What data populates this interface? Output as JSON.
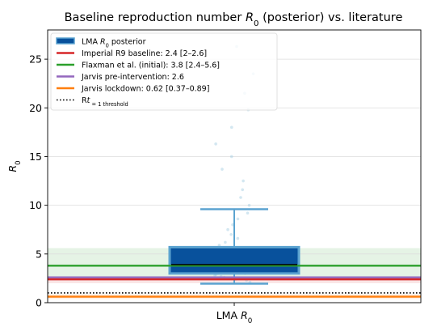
{
  "chart_data": {
    "type": "box",
    "title": "Baseline reproduction number R0 (posterior) vs. literature",
    "title_parts": [
      "Baseline reproduction number ",
      "R",
      "0",
      " (posterior) vs. literature"
    ],
    "ylabel_parts": [
      "R",
      "0"
    ],
    "ylim": [
      0,
      28
    ],
    "yticks": [
      0,
      5,
      10,
      15,
      20,
      25
    ],
    "grid": "y",
    "category_parts": [
      "LMA ",
      "R",
      "0"
    ],
    "box": {
      "q1": 3.0,
      "median": 3.9,
      "q3": 5.7,
      "whisker_low": 1.95,
      "whisker_high": 9.6,
      "fill": "#08519c",
      "edge": "#5ba3d0"
    },
    "posterior_samples": [
      2.1,
      2.3,
      2.4,
      2.5,
      2.6,
      2.7,
      2.8,
      2.9,
      3.0,
      3.0,
      3.1,
      3.2,
      3.2,
      3.3,
      3.4,
      3.5,
      3.5,
      3.6,
      3.7,
      3.8,
      3.9,
      4.0,
      4.1,
      4.2,
      4.3,
      4.4,
      4.5,
      4.6,
      4.8,
      5.0,
      5.2,
      5.4,
      5.6,
      5.9,
      6.2,
      6.6,
      7.0,
      7.5,
      8.0,
      8.6,
      9.2,
      10.0,
      10.8,
      11.6,
      12.5,
      13.7,
      15.0,
      16.3,
      18.0,
      19.8,
      21.5,
      23.5,
      26.3
    ],
    "reference_lines": [
      {
        "label_parts": [
          "Imperial R9 baseline: 2.4 [2–2.6]"
        ],
        "value": 2.4,
        "band": [
          2.0,
          2.6
        ],
        "color": "#d62728",
        "style": "solid"
      },
      {
        "label_parts": [
          "Flaxman et al. (initial): 3.8 [2.4–5.6]"
        ],
        "value": 3.8,
        "band": [
          2.4,
          5.6
        ],
        "color": "#2ca02c",
        "style": "solid"
      },
      {
        "label_parts": [
          "Jarvis pre-intervention: 2.6"
        ],
        "value": 2.6,
        "color": "#9467bd",
        "style": "solid"
      },
      {
        "label_parts": [
          "Jarvis lockdown: 0.62 [0.37–0.89]"
        ],
        "value": 0.62,
        "band": [
          0.37,
          0.89
        ],
        "color": "#ff7f0e",
        "style": "solid"
      },
      {
        "label_parts": [
          "R",
          "t",
          " = 1 threshold"
        ],
        "value": 1.0,
        "color": "#000000",
        "style": "dotted"
      }
    ],
    "legend": {
      "placement": "upper-left",
      "box_entry_parts": [
        "LMA ",
        "R",
        "0",
        " posterior"
      ]
    }
  }
}
